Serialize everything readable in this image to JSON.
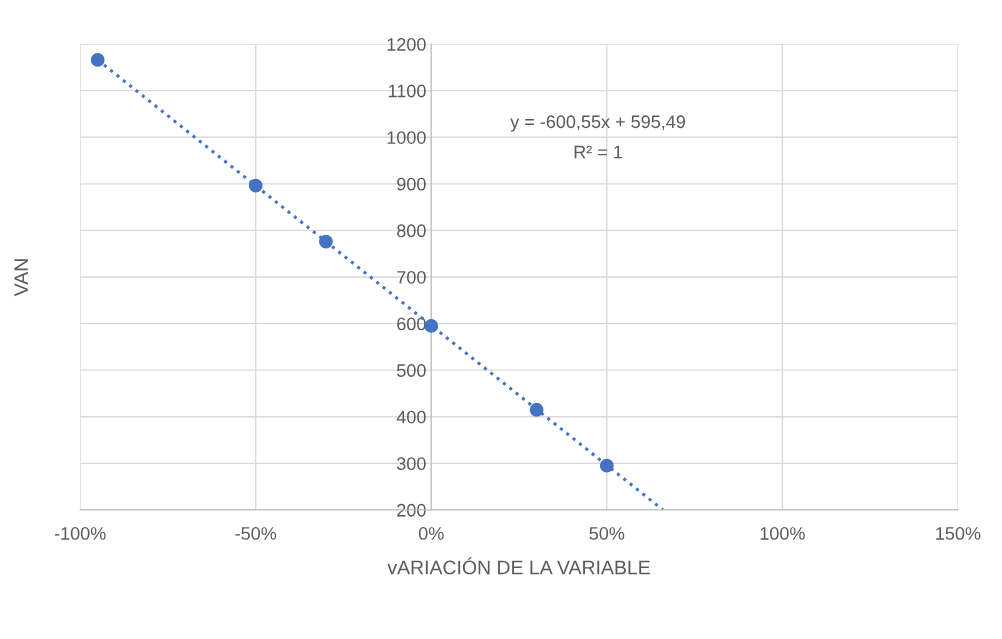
{
  "chart_data": {
    "type": "scatter",
    "xlabel": "vARIACIÓN DE LA VARIABLE",
    "ylabel": "VAN",
    "series": [
      {
        "color": "#4472c4",
        "marker": "circle",
        "x": [
          -0.95,
          -0.5,
          -0.3,
          0,
          0.3,
          0.5
        ],
        "values": [
          1166,
          896,
          776,
          595,
          415,
          295
        ]
      },
      {
        "type": "line",
        "color": "#4472c4",
        "marker": "none",
        "line_style": "dotted",
        "x": [
          -0.95,
          0.66
        ],
        "values": [
          1166,
          200
        ]
      }
    ],
    "xlim": [
      -1,
      1.5
    ],
    "ylim": [
      200,
      1200
    ],
    "xticks": [
      {
        "value": -1,
        "label": "-100%"
      },
      {
        "value": -0.5,
        "label": "-50%"
      },
      {
        "value": 0,
        "label": "0%"
      },
      {
        "value": 0.5,
        "label": "50%"
      },
      {
        "value": 1,
        "label": "100%"
      },
      {
        "value": 1.5,
        "label": "150%"
      }
    ],
    "yticks": [
      200,
      300,
      400,
      500,
      600,
      700,
      800,
      900,
      1000,
      1100,
      1200
    ],
    "grid": true,
    "legend": false,
    "annotations": [
      "y = -600,55x + 595,49",
      "R² = 1"
    ]
  }
}
